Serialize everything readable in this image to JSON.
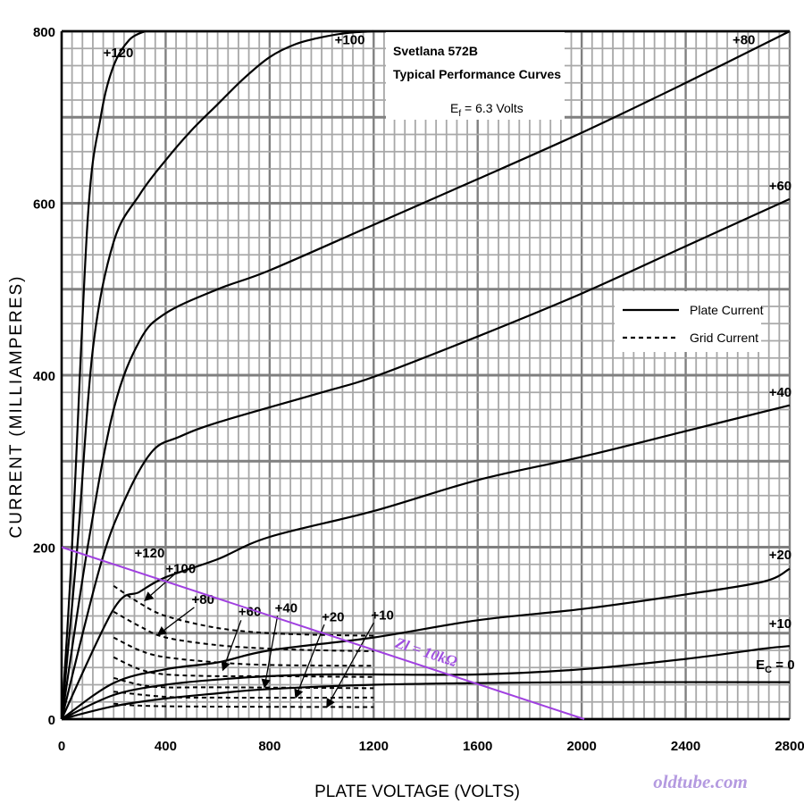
{
  "chart_data": {
    "type": "line",
    "title": "Svetlana 572B",
    "subtitle": "Typical Performance Curves",
    "filament_note": {
      "main": "E",
      "sub": "f",
      "rest": " = 6.3 Volts"
    },
    "xlabel": "PLATE VOLTAGE (VOLTS)",
    "ylabel": "CURRENT (MILLIAMPERES)",
    "xlim": [
      0,
      2800
    ],
    "ylim": [
      0,
      800
    ],
    "x_ticks": [
      "0",
      "400",
      "800",
      "1200",
      "1600",
      "2000",
      "2400",
      "2800"
    ],
    "y_ticks": [
      "0",
      "200",
      "400",
      "600",
      "800"
    ],
    "grid": true,
    "legend_position": "right",
    "legend": [
      {
        "label": "Plate Current",
        "style": "solid"
      },
      {
        "label": "Grid Current",
        "style": "dashed"
      }
    ],
    "plate_current": [
      {
        "name": "+120",
        "points": [
          [
            0,
            0
          ],
          [
            40,
            200
          ],
          [
            100,
            580
          ],
          [
            150,
            700
          ],
          [
            200,
            760
          ],
          [
            260,
            790
          ],
          [
            320,
            800
          ]
        ]
      },
      {
        "name": "+100",
        "points": [
          [
            0,
            0
          ],
          [
            60,
            200
          ],
          [
            120,
            430
          ],
          [
            200,
            555
          ],
          [
            300,
            610
          ],
          [
            400,
            650
          ],
          [
            500,
            685
          ],
          [
            600,
            715
          ],
          [
            700,
            745
          ],
          [
            800,
            770
          ],
          [
            900,
            785
          ],
          [
            1000,
            793
          ],
          [
            1100,
            798
          ],
          [
            1200,
            800
          ]
        ]
      },
      {
        "name": "+80",
        "points": [
          [
            0,
            0
          ],
          [
            100,
            200
          ],
          [
            200,
            360
          ],
          [
            300,
            440
          ],
          [
            400,
            472
          ],
          [
            600,
            500
          ],
          [
            800,
            522
          ],
          [
            1200,
            575
          ],
          [
            1600,
            628
          ],
          [
            2000,
            682
          ],
          [
            2400,
            740
          ],
          [
            2800,
            800
          ]
        ]
      },
      {
        "name": "+60",
        "points": [
          [
            0,
            0
          ],
          [
            150,
            180
          ],
          [
            250,
            260
          ],
          [
            350,
            312
          ],
          [
            450,
            328
          ],
          [
            600,
            345
          ],
          [
            1000,
            380
          ],
          [
            1200,
            398
          ],
          [
            1600,
            445
          ],
          [
            2000,
            495
          ],
          [
            2400,
            550
          ],
          [
            2800,
            605
          ]
        ]
      },
      {
        "name": "+40",
        "points": [
          [
            0,
            0
          ],
          [
            200,
            128
          ],
          [
            300,
            148
          ],
          [
            400,
            165
          ],
          [
            600,
            186
          ],
          [
            800,
            212
          ],
          [
            1200,
            242
          ],
          [
            1600,
            278
          ],
          [
            2000,
            305
          ],
          [
            2400,
            335
          ],
          [
            2800,
            365
          ]
        ]
      },
      {
        "name": "+20",
        "points": [
          [
            0,
            0
          ],
          [
            200,
            42
          ],
          [
            400,
            58
          ],
          [
            600,
            66
          ],
          [
            800,
            80
          ],
          [
            1200,
            95
          ],
          [
            1600,
            115
          ],
          [
            2000,
            128
          ],
          [
            2400,
            145
          ],
          [
            2700,
            160
          ],
          [
            2800,
            175
          ]
        ]
      },
      {
        "name": "+10",
        "points": [
          [
            0,
            0
          ],
          [
            200,
            28
          ],
          [
            400,
            40
          ],
          [
            600,
            46
          ],
          [
            800,
            50
          ],
          [
            1000,
            52
          ],
          [
            1200,
            52
          ],
          [
            1600,
            52
          ],
          [
            2000,
            58
          ],
          [
            2400,
            70
          ],
          [
            2700,
            82
          ],
          [
            2800,
            85
          ]
        ]
      },
      {
        "name": "0",
        "points": [
          [
            0,
            0
          ],
          [
            200,
            15
          ],
          [
            400,
            24
          ],
          [
            600,
            30
          ],
          [
            800,
            35
          ],
          [
            1200,
            40
          ],
          [
            1600,
            42
          ],
          [
            2000,
            43
          ],
          [
            2800,
            43
          ]
        ]
      }
    ],
    "grid_current": [
      {
        "name": "+120",
        "points": [
          [
            200,
            155
          ],
          [
            300,
            135
          ],
          [
            400,
            120
          ],
          [
            600,
            106
          ],
          [
            800,
            100
          ],
          [
            1000,
            98
          ],
          [
            1200,
            97
          ]
        ]
      },
      {
        "name": "+100",
        "points": [
          [
            200,
            125
          ],
          [
            300,
            108
          ],
          [
            400,
            95
          ],
          [
            600,
            86
          ],
          [
            800,
            82
          ],
          [
            1000,
            80
          ],
          [
            1200,
            79
          ]
        ]
      },
      {
        "name": "+80",
        "points": [
          [
            200,
            95
          ],
          [
            300,
            80
          ],
          [
            400,
            72
          ],
          [
            600,
            66
          ],
          [
            800,
            63
          ],
          [
            1200,
            62
          ]
        ]
      },
      {
        "name": "+60",
        "points": [
          [
            200,
            72
          ],
          [
            300,
            58
          ],
          [
            400,
            52
          ],
          [
            600,
            50
          ],
          [
            800,
            50
          ],
          [
            1200,
            49
          ]
        ]
      },
      {
        "name": "+40",
        "points": [
          [
            200,
            48
          ],
          [
            300,
            40
          ],
          [
            400,
            37
          ],
          [
            600,
            37
          ],
          [
            1200,
            36
          ]
        ]
      },
      {
        "name": "+20",
        "points": [
          [
            200,
            32
          ],
          [
            400,
            26
          ],
          [
            600,
            25
          ],
          [
            1200,
            25
          ]
        ]
      },
      {
        "name": "+10",
        "points": [
          [
            200,
            18
          ],
          [
            400,
            15
          ],
          [
            1200,
            14
          ]
        ]
      }
    ],
    "plate_labels": [
      {
        "text": "+120",
        "x": 160,
        "y": 770
      },
      {
        "text": "+100",
        "x": 1050,
        "y": 785
      },
      {
        "text": "+80",
        "x": 2580,
        "y": 785
      },
      {
        "text": "+60",
        "x": 2720,
        "y": 615
      },
      {
        "text": "+40",
        "x": 2720,
        "y": 375
      },
      {
        "text": "+20",
        "x": 2720,
        "y": 186
      },
      {
        "text": "+10",
        "x": 2720,
        "y": 106
      },
      {
        "text": "E",
        "sub": "C",
        "rest": " = 0",
        "x": 2670,
        "y": 58
      }
    ],
    "grid_labels": [
      {
        "text": "+120",
        "x": 280,
        "y": 188
      },
      {
        "text": "+100",
        "x": 400,
        "y": 170
      },
      {
        "text": "+80",
        "x": 500,
        "y": 134
      },
      {
        "text": "+60",
        "x": 680,
        "y": 120
      },
      {
        "text": "+40",
        "x": 820,
        "y": 124
      },
      {
        "text": "+20",
        "x": 1000,
        "y": 114
      },
      {
        "text": "+10",
        "x": 1190,
        "y": 116
      }
    ],
    "grid_arrows": [
      {
        "from": [
          440,
          170
        ],
        "to": [
          320,
          138
        ]
      },
      {
        "from": [
          510,
          130
        ],
        "to": [
          370,
          98
        ]
      },
      {
        "from": [
          690,
          115
        ],
        "to": [
          620,
          57
        ]
      },
      {
        "from": [
          830,
          120
        ],
        "to": [
          780,
          37
        ]
      },
      {
        "from": [
          1010,
          110
        ],
        "to": [
          900,
          25
        ]
      },
      {
        "from": [
          1200,
          112
        ],
        "to": [
          1020,
          14
        ]
      }
    ],
    "load_line": {
      "label": "Zl = 10kΩ",
      "points": [
        [
          0,
          200
        ],
        [
          2010,
          0
        ]
      ],
      "label_x": 1280,
      "label_y": 84,
      "color": "#a040e0"
    }
  },
  "watermark": "oldtube.com"
}
